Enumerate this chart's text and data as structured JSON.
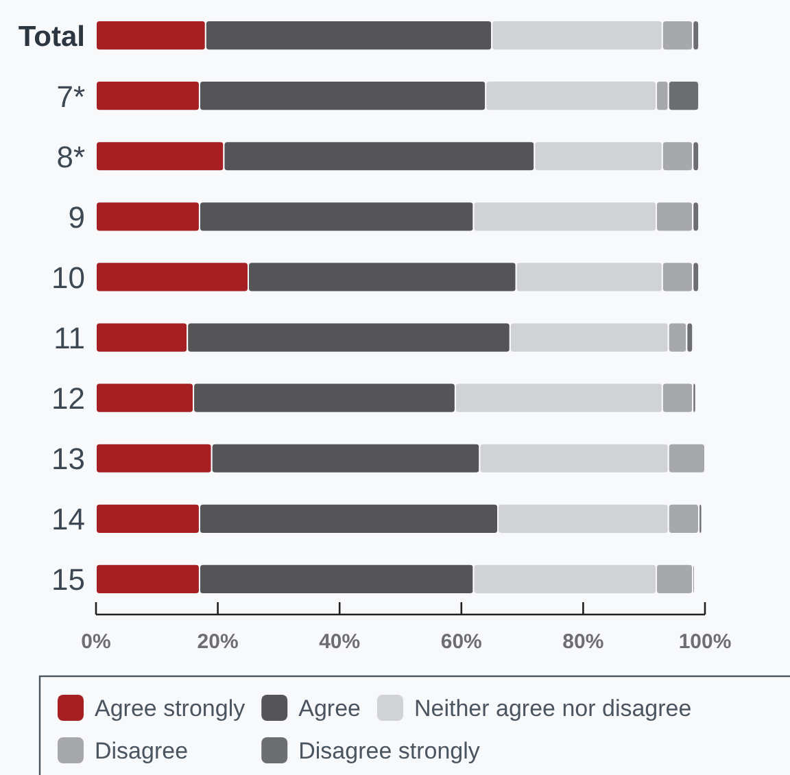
{
  "chart_data": {
    "type": "bar",
    "orientation": "horizontal",
    "stacked": true,
    "categories": [
      "Total",
      "7*",
      "8*",
      "9",
      "10",
      "11",
      "12",
      "13",
      "14",
      "15"
    ],
    "series": [
      {
        "name": "Agree strongly",
        "color": "#a61f23",
        "values": [
          18,
          17,
          21,
          17,
          25,
          15,
          16,
          19,
          17,
          17
        ]
      },
      {
        "name": "Agree",
        "color": "#555558",
        "values": [
          47,
          47,
          51,
          45,
          44,
          53,
          43,
          44,
          49,
          45
        ]
      },
      {
        "name": "Neither agree nor disagree",
        "color": "#d1d2d4",
        "values": [
          28,
          28,
          21,
          30,
          24,
          26,
          34,
          31,
          28,
          30
        ]
      },
      {
        "name": "Disagree",
        "color": "#a7a8ab",
        "values": [
          5,
          2,
          5,
          6,
          5,
          3,
          5,
          6,
          5,
          6
        ]
      },
      {
        "name": "Disagree strongly",
        "color": "#6d6e71",
        "values": [
          1,
          5,
          1,
          1,
          1,
          1,
          0.5,
          null,
          0.5,
          0.3
        ]
      }
    ],
    "xlim": [
      0,
      100
    ],
    "xticks": [
      {
        "value": 0,
        "label": "0%"
      },
      {
        "value": 20,
        "label": "20%"
      },
      {
        "value": 40,
        "label": "40%"
      },
      {
        "value": 60,
        "label": "60%"
      },
      {
        "value": 80,
        "label": "80%"
      },
      {
        "value": 100,
        "label": "100%"
      }
    ],
    "grid": false,
    "legend": "bottom"
  }
}
